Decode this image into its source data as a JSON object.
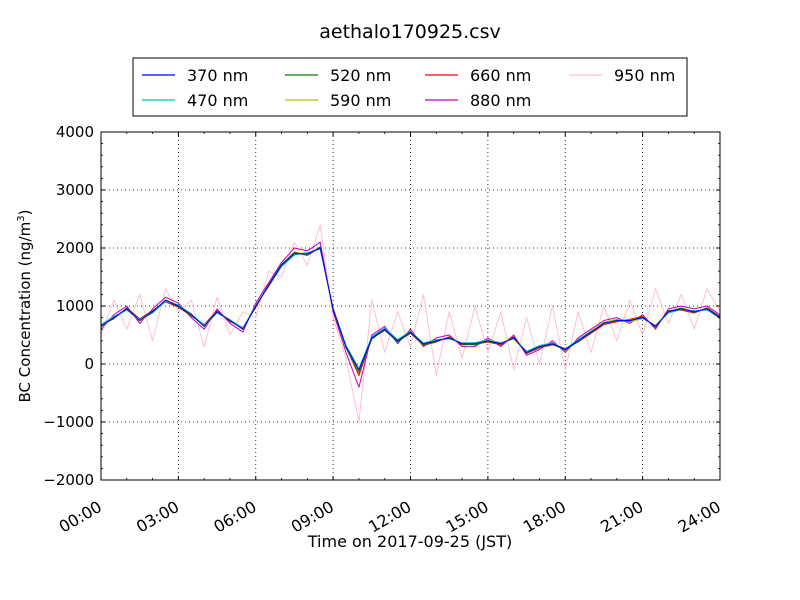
{
  "chart_data": {
    "type": "line",
    "title": "aethalo170925.csv",
    "xlabel": "Time on 2017-09-25 (JST)",
    "ylabel_main": "BC Concentration (ng/m",
    "ylabel_sup": "3",
    "ylabel_end": ")",
    "xlim": [
      "00:00",
      "24:00"
    ],
    "ylim": [
      -2000,
      4000
    ],
    "grid": true,
    "grid_style": "dotted",
    "legend_placement": "top-center",
    "x_ticks": [
      {
        "value": 0,
        "label": "00:00"
      },
      {
        "value": 3,
        "label": "03:00"
      },
      {
        "value": 6,
        "label": "06:00"
      },
      {
        "value": 9,
        "label": "09:00"
      },
      {
        "value": 12,
        "label": "12:00"
      },
      {
        "value": 15,
        "label": "15:00"
      },
      {
        "value": 18,
        "label": "18:00"
      },
      {
        "value": 21,
        "label": "21:00"
      },
      {
        "value": 24,
        "label": "24:00"
      }
    ],
    "y_ticks": [
      {
        "value": 4000,
        "label": "4000"
      },
      {
        "value": 3000,
        "label": "3000"
      },
      {
        "value": 2000,
        "label": "2000"
      },
      {
        "value": 1000,
        "label": "1000"
      },
      {
        "value": 0,
        "label": "0"
      },
      {
        "value": -1000,
        "label": "−1000"
      },
      {
        "value": -2000,
        "label": "−2000"
      }
    ],
    "x": [
      "00:00",
      "00:30",
      "01:00",
      "01:30",
      "02:00",
      "02:30",
      "03:00",
      "03:30",
      "04:00",
      "04:30",
      "05:00",
      "05:30",
      "06:00",
      "06:30",
      "07:00",
      "07:30",
      "08:00",
      "08:30",
      "09:00",
      "09:30",
      "10:00",
      "10:30",
      "11:00",
      "11:30",
      "12:00",
      "12:30",
      "13:00",
      "13:30",
      "14:00",
      "14:30",
      "15:00",
      "15:30",
      "16:00",
      "16:30",
      "17:00",
      "17:30",
      "18:00",
      "18:30",
      "19:00",
      "19:30",
      "20:00",
      "20:30",
      "21:00",
      "21:30",
      "22:00",
      "22:30",
      "23:00",
      "23:30",
      "24:00"
    ],
    "series": [
      {
        "name": "370 nm",
        "color": "#0000ff",
        "values": [
          650,
          800,
          950,
          750,
          900,
          1100,
          1000,
          850,
          650,
          900,
          750,
          600,
          1000,
          1350,
          1700,
          1900,
          1900,
          2000,
          950,
          300,
          -100,
          450,
          600,
          400,
          550,
          350,
          400,
          450,
          350,
          350,
          400,
          350,
          450,
          200,
          300,
          350,
          250,
          400,
          550,
          700,
          750,
          750,
          800,
          650,
          900,
          950,
          900,
          950,
          800
        ]
      },
      {
        "name": "470 nm",
        "color": "#00bfbf",
        "values": [
          680,
          820,
          930,
          770,
          880,
          1080,
          1020,
          860,
          670,
          880,
          760,
          620,
          1010,
          1340,
          1680,
          1880,
          1920,
          1980,
          960,
          320,
          -80,
          470,
          620,
          420,
          560,
          360,
          420,
          440,
          360,
          370,
          410,
          360,
          440,
          220,
          320,
          360,
          260,
          420,
          560,
          690,
          760,
          760,
          790,
          660,
          880,
          940,
          920,
          930,
          790
        ]
      },
      {
        "name": "520 nm",
        "color": "#008000",
        "values": [
          660,
          790,
          960,
          760,
          910,
          1090,
          990,
          840,
          660,
          910,
          740,
          610,
          990,
          1360,
          1720,
          1920,
          1880,
          2020,
          940,
          280,
          -150,
          430,
          590,
          380,
          540,
          330,
          390,
          460,
          340,
          330,
          390,
          340,
          460,
          190,
          290,
          340,
          240,
          390,
          540,
          710,
          740,
          740,
          810,
          640,
          910,
          960,
          890,
          960,
          810
        ]
      },
      {
        "name": "590 nm",
        "color": "#bfbf00",
        "values": [
          640,
          810,
          940,
          740,
          890,
          1110,
          1010,
          870,
          640,
          890,
          770,
          590,
          1020,
          1330,
          1690,
          1910,
          1910,
          1990,
          970,
          310,
          -120,
          460,
          610,
          410,
          570,
          340,
          410,
          430,
          370,
          360,
          420,
          370,
          430,
          210,
          310,
          370,
          230,
          410,
          570,
          720,
          770,
          730,
          780,
          670,
          890,
          970,
          910,
          940,
          780
        ]
      },
      {
        "name": "660 nm",
        "color": "#ff0000",
        "values": [
          670,
          780,
          970,
          780,
          920,
          1070,
          980,
          830,
          680,
          920,
          730,
          630,
          980,
          1370,
          1710,
          1930,
          1870,
          2010,
          930,
          290,
          -200,
          440,
          580,
          390,
          530,
          320,
          380,
          470,
          330,
          340,
          380,
          330,
          470,
          180,
          280,
          330,
          270,
          380,
          530,
          680,
          730,
          770,
          820,
          630,
          920,
          930,
          880,
          970,
          820
        ]
      },
      {
        "name": "880 nm",
        "color": "#bf00bf",
        "values": [
          600,
          850,
          1000,
          700,
          950,
          1150,
          1050,
          800,
          600,
          950,
          700,
          550,
          1050,
          1400,
          1750,
          2000,
          1950,
          2100,
          900,
          200,
          -400,
          500,
          650,
          350,
          600,
          300,
          450,
          500,
          300,
          300,
          450,
          300,
          500,
          150,
          250,
          400,
          200,
          450,
          600,
          750,
          800,
          700,
          850,
          600,
          950,
          1000,
          950,
          1000,
          850
        ]
      },
      {
        "name": "950 nm",
        "color": "#ffc0cb",
        "values": [
          500,
          1100,
          600,
          1200,
          400,
          1300,
          900,
          1100,
          300,
          1150,
          500,
          900,
          800,
          1600,
          1500,
          2100,
          1700,
          2400,
          800,
          100,
          -1000,
          1100,
          200,
          900,
          300,
          1200,
          -200,
          900,
          100,
          1000,
          200,
          900,
          -100,
          800,
          0,
          1000,
          -100,
          900,
          200,
          1000,
          400,
          1100,
          500,
          1300,
          700,
          1200,
          600,
          1300,
          900
        ]
      }
    ]
  }
}
